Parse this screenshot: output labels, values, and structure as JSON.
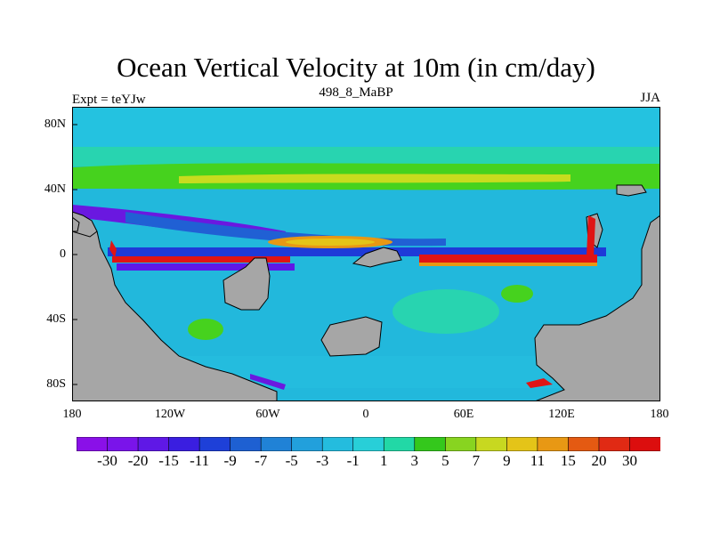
{
  "title": "Ocean Vertical Velocity at 10m (in cm/day)",
  "subtitle": "498_8_MaBP",
  "left_label": "Expt = teYJw",
  "right_label": "JJA",
  "axes": {
    "lat_ticks": [
      "80N",
      "40N",
      "0",
      "40S",
      "80S"
    ],
    "lon_ticks": [
      "180",
      "120W",
      "60W",
      "0",
      "60E",
      "120E",
      "180"
    ]
  },
  "colorbar": {
    "labels": [
      "-30",
      "-20",
      "-15",
      "-11",
      "-9",
      "-7",
      "-5",
      "-3",
      "-1",
      "1",
      "3",
      "5",
      "7",
      "9",
      "11",
      "15",
      "20",
      "30"
    ],
    "colors": [
      "#8a10e8",
      "#7a14ea",
      "#5f18e6",
      "#3a1ee0",
      "#1e40d8",
      "#1e60d2",
      "#2082d6",
      "#22a0dc",
      "#24bcde",
      "#28cfd8",
      "#22d8a6",
      "#34c81c",
      "#88d420",
      "#c8d820",
      "#e4c418",
      "#e89814",
      "#e45a12",
      "#e02a14",
      "#dc0e0e"
    ]
  },
  "map_colors": {
    "land": "#a6a6a6",
    "background_blue": "#22b8dc",
    "band_green": "#46d21e",
    "band_yellow": "#c8dc1e",
    "teal": "#28d4b0",
    "upwelling_red": "#e01414",
    "downwelling_purple": "#6a18e0",
    "deep_blue": "#1e3ad8"
  }
}
